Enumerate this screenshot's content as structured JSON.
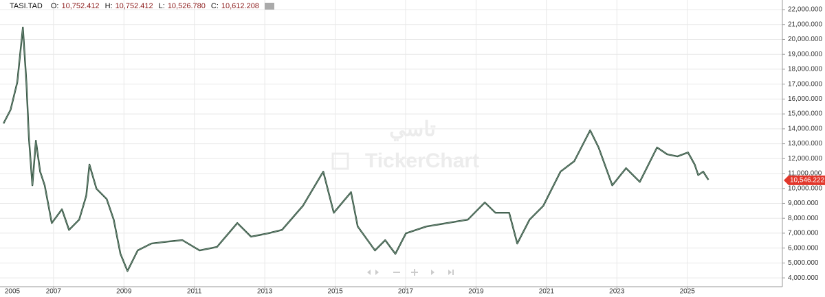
{
  "chart_data": {
    "type": "line",
    "header": {
      "symbol": "TASI.TAD",
      "fields": [
        {
          "label": "O:",
          "value": "10,752.412"
        },
        {
          "label": "H:",
          "value": "10,752.412"
        },
        {
          "label": "L:",
          "value": "10,526.780"
        },
        {
          "label": "C:",
          "value": "10,612.208"
        }
      ]
    },
    "watermark": [
      "تاسي",
      "TickerChart"
    ],
    "x": [
      2005.58,
      2005.78,
      2005.97,
      2006.13,
      2006.23,
      2006.3,
      2006.4,
      2006.5,
      2006.62,
      2006.75,
      2006.95,
      2007.24,
      2007.44,
      2007.73,
      2007.93,
      2008.02,
      2008.22,
      2008.51,
      2008.71,
      2008.9,
      2009.1,
      2009.39,
      2009.78,
      2010.27,
      2010.66,
      2011.15,
      2011.64,
      2012.22,
      2012.61,
      2013.1,
      2013.49,
      2014.08,
      2014.66,
      2014.96,
      2015.45,
      2015.64,
      2016.13,
      2016.42,
      2016.71,
      2017.01,
      2017.59,
      2018.18,
      2018.77,
      2019.25,
      2019.55,
      2019.94,
      2020.17,
      2020.52,
      2020.91,
      2021.4,
      2021.79,
      2022.24,
      2022.48,
      2022.87,
      2023.26,
      2023.65,
      2024.14,
      2024.43,
      2024.72,
      2025.02,
      2025.21,
      2025.31,
      2025.45,
      2025.6
    ],
    "series": [
      {
        "color": "#2f4f3c",
        "values": [
          14360,
          15280,
          17120,
          20800,
          17120,
          13440,
          10210,
          13200,
          11130,
          10210,
          7680,
          8600,
          7220,
          7910,
          9520,
          11600,
          9980,
          9290,
          7910,
          5610,
          4460,
          5840,
          6300,
          6440,
          6530,
          5840,
          6070,
          7680,
          6760,
          6990,
          7220,
          8830,
          11130,
          8370,
          9750,
          7450,
          5840,
          6530,
          5610,
          6990,
          7450,
          7680,
          7910,
          9060,
          8370,
          8370,
          6300,
          7910,
          8830,
          11130,
          11830,
          13900,
          12750,
          10210,
          11360,
          10440,
          12750,
          12290,
          12150,
          12420,
          11600,
          10900,
          11130,
          10580
        ]
      }
    ],
    "last_price": {
      "value": 10546.222,
      "label": "10,546.222",
      "color": "#e2372b"
    },
    "xlim": [
      2005.48,
      2027.7
    ],
    "xticks": [
      2005,
      2007,
      2009,
      2011,
      2013,
      2015,
      2017,
      2019,
      2021,
      2023,
      2025
    ],
    "ylim": [
      3407,
      22645
    ],
    "yticks": [
      {
        "value": 4000,
        "label": "4,000.000"
      },
      {
        "value": 5000,
        "label": "5,000.000"
      },
      {
        "value": 6000,
        "label": "6,000.000"
      },
      {
        "value": 7000,
        "label": "7,000.000"
      },
      {
        "value": 8000,
        "label": "8,000.000"
      },
      {
        "value": 9000,
        "label": "9,000.000"
      },
      {
        "value": 10000,
        "label": "10,000.000"
      },
      {
        "value": 11000,
        "label": "11,000.000"
      },
      {
        "value": 12000,
        "label": "12,000.000"
      },
      {
        "value": 13000,
        "label": "13,000.000"
      },
      {
        "value": 14000,
        "label": "14,000.000"
      },
      {
        "value": 15000,
        "label": "15,000.000"
      },
      {
        "value": 16000,
        "label": "16,000.000"
      },
      {
        "value": 17000,
        "label": "17,000.000"
      },
      {
        "value": 18000,
        "label": "18,000.000"
      },
      {
        "value": 19000,
        "label": "19,000.000"
      },
      {
        "value": 20000,
        "label": "20,000.000"
      },
      {
        "value": 21000,
        "label": "21,000.000"
      },
      {
        "value": 22000,
        "label": "22,000.000"
      }
    ],
    "grid": true
  }
}
